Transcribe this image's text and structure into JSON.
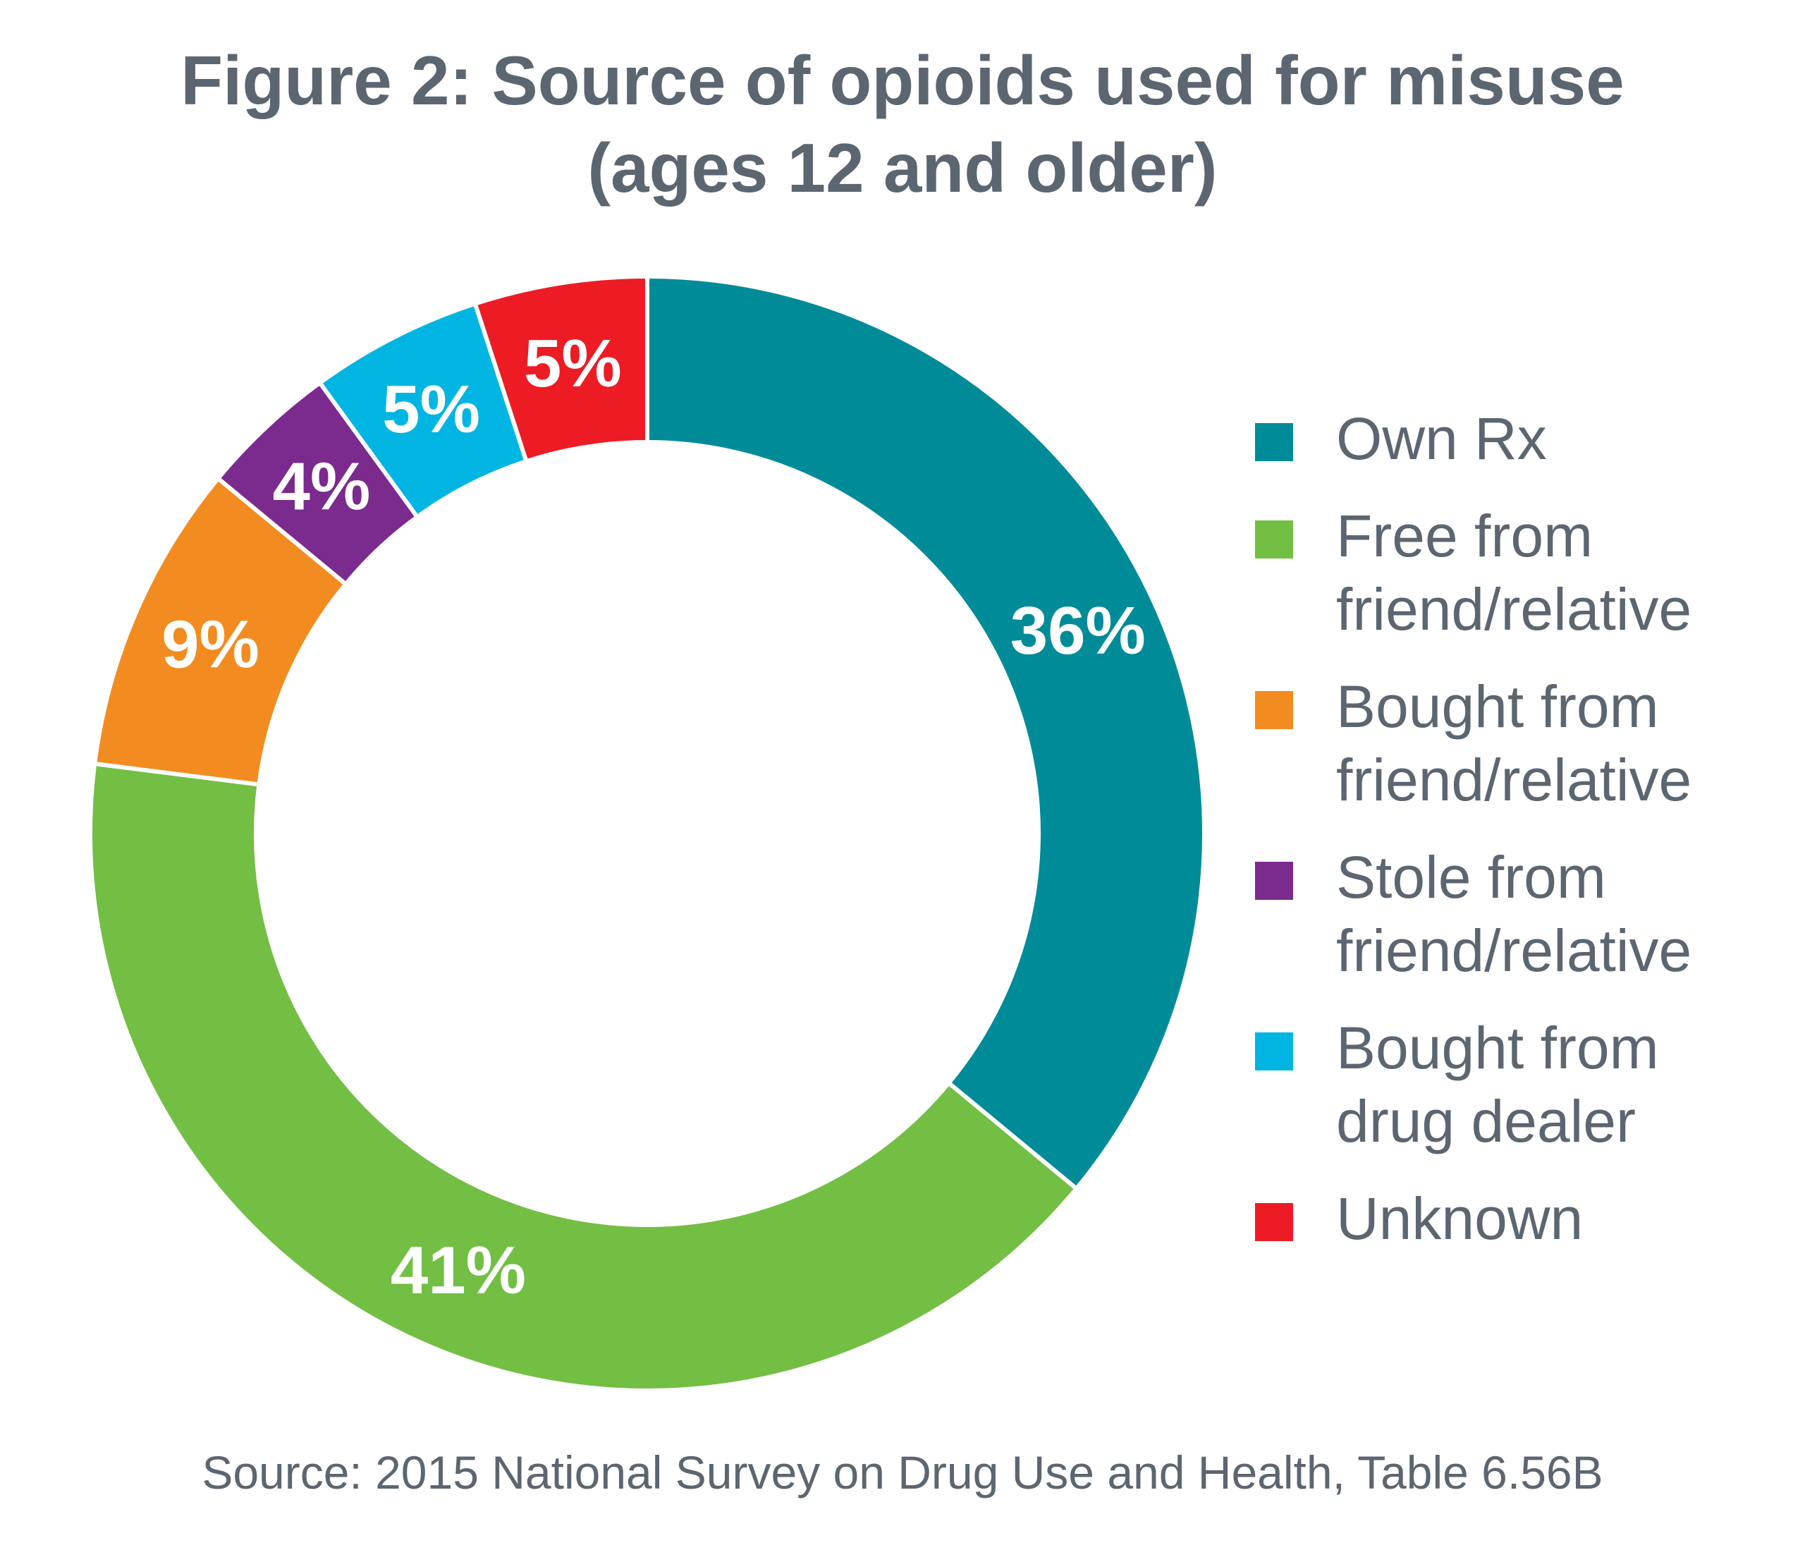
{
  "title_line1": "Figure 2: Source of opioids used for misuse",
  "title_line2": "(ages 12 and older)",
  "source": "Source: 2015 National Survey on Drug Use and Health, Table 6.56B",
  "chart_data": {
    "type": "pie",
    "variant": "donut",
    "title": "Figure 2: Source of opioids used for misuse (ages 12 and older)",
    "start_angle": "12 o'clock",
    "direction": "clockwise",
    "legend_position": "right",
    "categories": [
      "Own Rx",
      "Free from friend/relative",
      "Bought from friend/relative",
      "Stole from friend/relative",
      "Bought from drug dealer",
      "Unknown"
    ],
    "values": [
      36,
      41,
      9,
      4,
      5,
      5
    ],
    "labels": [
      "36%",
      "41%",
      "9%",
      "4%",
      "5%",
      "5%"
    ],
    "colors": [
      "#008b98",
      "#72bf44",
      "#f28c20",
      "#7b2a8e",
      "#00b5e1",
      "#ed1c24"
    ]
  },
  "legend": [
    {
      "lines": [
        "Own Rx"
      ],
      "color": "#008b98"
    },
    {
      "lines": [
        "Free from",
        "friend/relative"
      ],
      "color": "#72bf44"
    },
    {
      "lines": [
        "Bought from",
        "friend/relative"
      ],
      "color": "#f28c20"
    },
    {
      "lines": [
        "Stole from",
        "friend/relative"
      ],
      "color": "#7b2a8e"
    },
    {
      "lines": [
        "Bought from",
        "drug dealer"
      ],
      "color": "#00b5e1"
    },
    {
      "lines": [
        "Unknown"
      ],
      "color": "#ed1c24"
    }
  ]
}
